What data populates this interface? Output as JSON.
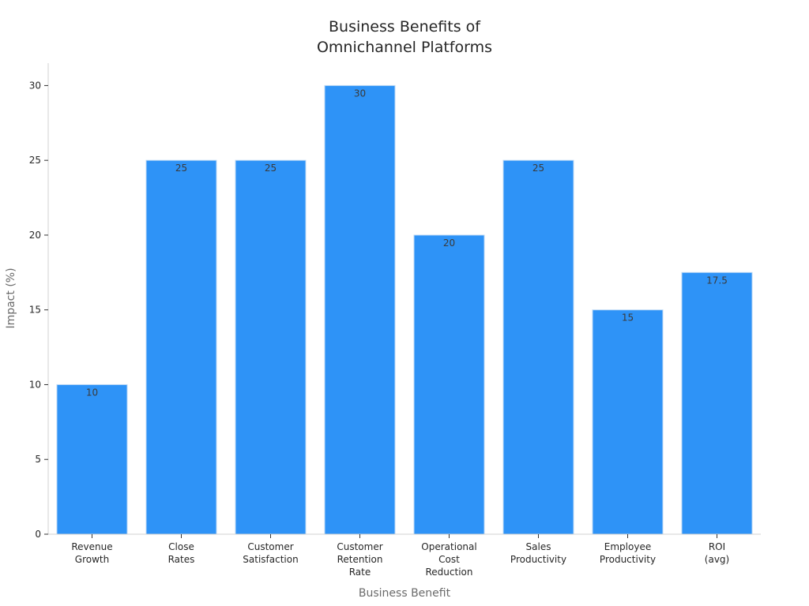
{
  "chart_data": {
    "type": "bar",
    "title": [
      "Business Benefits of",
      "Omnichannel Platforms"
    ],
    "xlabel": "Business Benefit",
    "ylabel": "Impact (%)",
    "ylim": [
      0,
      31.5
    ],
    "yticks": [
      0,
      5,
      10,
      15,
      20,
      25,
      30
    ],
    "categories": [
      [
        "Revenue",
        "Growth"
      ],
      [
        "Close",
        "Rates"
      ],
      [
        "Customer",
        "Satisfaction"
      ],
      [
        "Customer",
        "Retention",
        "Rate"
      ],
      [
        "Operational",
        "Cost",
        "Reduction"
      ],
      [
        "Sales",
        "Productivity"
      ],
      [
        "Employee",
        "Productivity"
      ],
      [
        "ROI",
        "(avg)"
      ]
    ],
    "values": [
      10,
      25,
      25,
      30,
      20,
      25,
      15,
      17.5
    ],
    "value_labels": [
      "10",
      "25",
      "25",
      "30",
      "20",
      "25",
      "15",
      "17.5"
    ],
    "bar_color": "#2e93f7",
    "bar_edge_color": "#bcd9f5",
    "grid": false,
    "legend": "none"
  }
}
